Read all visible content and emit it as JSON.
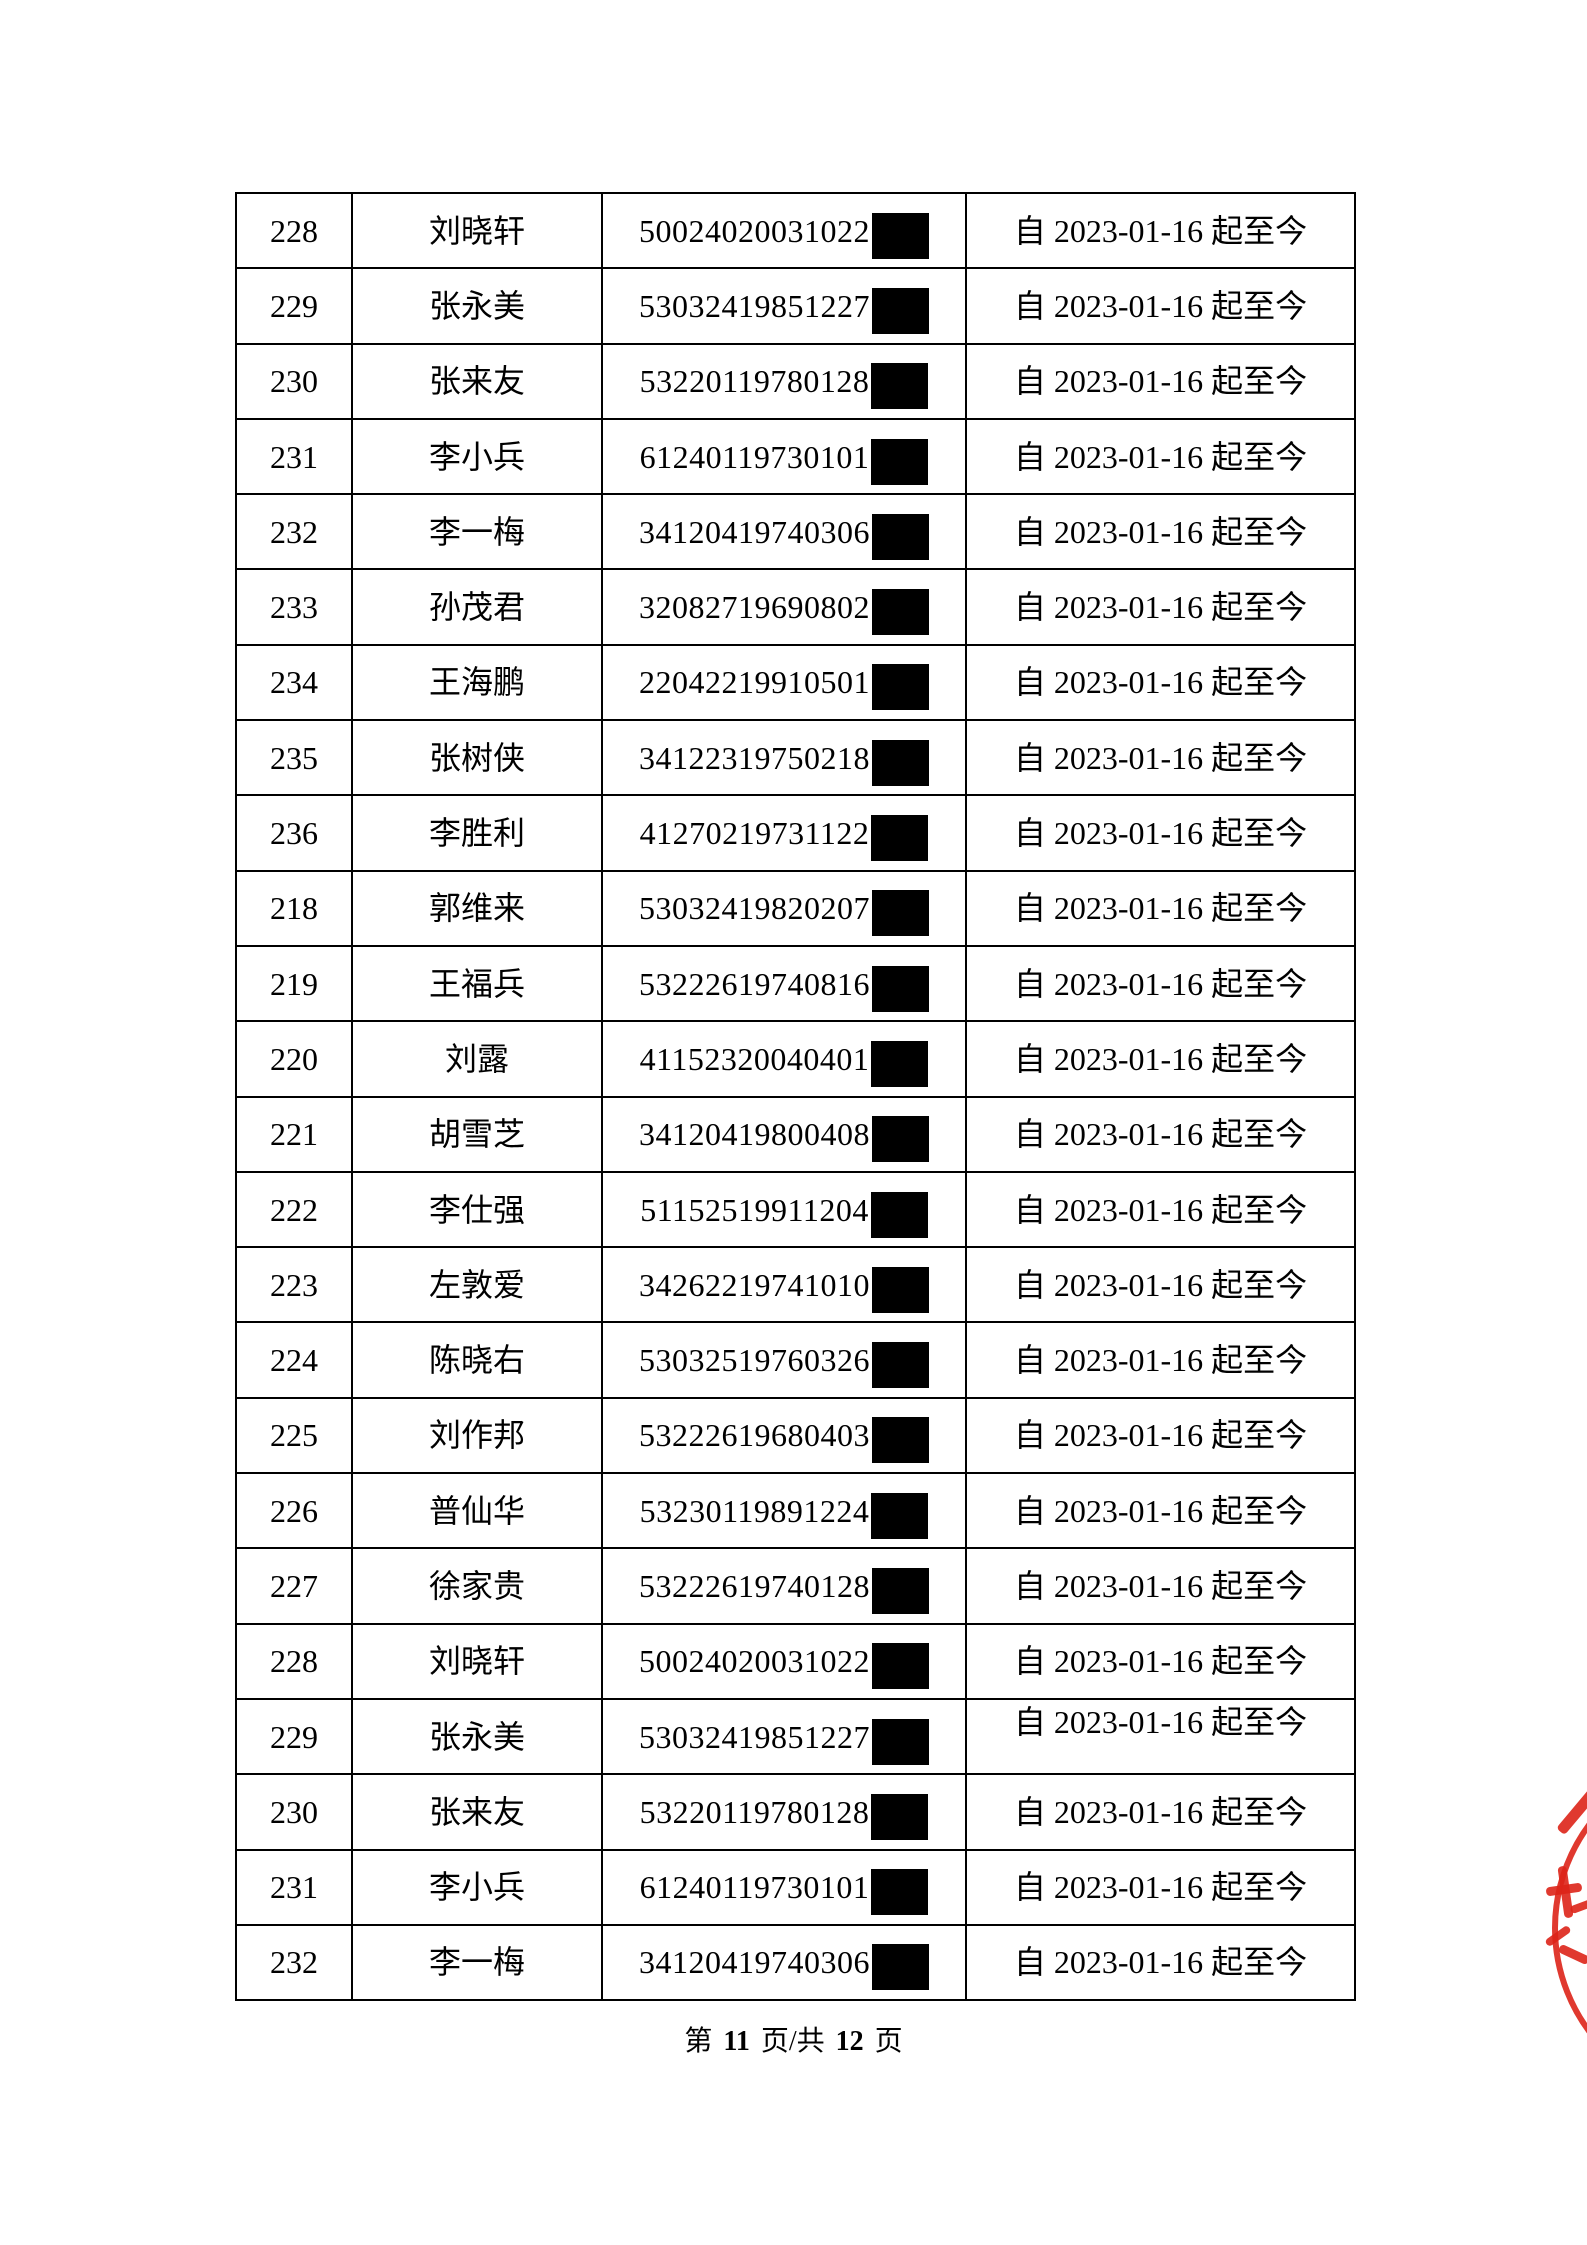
{
  "table": {
    "validity_text": "自 2023-01-16 起至今",
    "rows": [
      {
        "no": "228",
        "name": "刘晓轩",
        "id_prefix": "50024020031022"
      },
      {
        "no": "229",
        "name": "张永美",
        "id_prefix": "53032419851227"
      },
      {
        "no": "230",
        "name": "张来友",
        "id_prefix": "53220119780128"
      },
      {
        "no": "231",
        "name": "李小兵",
        "id_prefix": "61240119730101"
      },
      {
        "no": "232",
        "name": "李一梅",
        "id_prefix": "34120419740306"
      },
      {
        "no": "233",
        "name": "孙茂君",
        "id_prefix": "32082719690802"
      },
      {
        "no": "234",
        "name": "王海鹏",
        "id_prefix": "22042219910501"
      },
      {
        "no": "235",
        "name": "张树侠",
        "id_prefix": "34122319750218"
      },
      {
        "no": "236",
        "name": "李胜利",
        "id_prefix": "41270219731122"
      },
      {
        "no": "218",
        "name": "郭维来",
        "id_prefix": "53032419820207"
      },
      {
        "no": "219",
        "name": "王福兵",
        "id_prefix": "53222619740816"
      },
      {
        "no": "220",
        "name": "刘露",
        "id_prefix": "41152320040401"
      },
      {
        "no": "221",
        "name": "胡雪芝",
        "id_prefix": "34120419800408"
      },
      {
        "no": "222",
        "name": "李仕强",
        "id_prefix": "51152519911204"
      },
      {
        "no": "223",
        "name": "左敦爱",
        "id_prefix": "34262219741010"
      },
      {
        "no": "224",
        "name": "陈晓右",
        "id_prefix": "53032519760326"
      },
      {
        "no": "225",
        "name": "刘作邦",
        "id_prefix": "53222619680403"
      },
      {
        "no": "226",
        "name": "普仙华",
        "id_prefix": "53230119891224"
      },
      {
        "no": "227",
        "name": "徐家贵",
        "id_prefix": "53222619740128"
      },
      {
        "no": "228",
        "name": "刘晓轩",
        "id_prefix": "50024020031022"
      },
      {
        "no": "229",
        "name": "张永美",
        "id_prefix": "53032419851227",
        "date_align": "top"
      },
      {
        "no": "230",
        "name": "张来友",
        "id_prefix": "53220119780128"
      },
      {
        "no": "231",
        "name": "李小兵",
        "id_prefix": "61240119730101"
      },
      {
        "no": "232",
        "name": "李一梅",
        "id_prefix": "34120419740306"
      }
    ]
  },
  "footer": {
    "prefix": "第",
    "page_number": "11",
    "separator": "页/共",
    "total_pages": "12",
    "suffix": "页"
  },
  "stamp": {
    "name": "red-seal-stamp-partial",
    "color": "#dd2418"
  }
}
